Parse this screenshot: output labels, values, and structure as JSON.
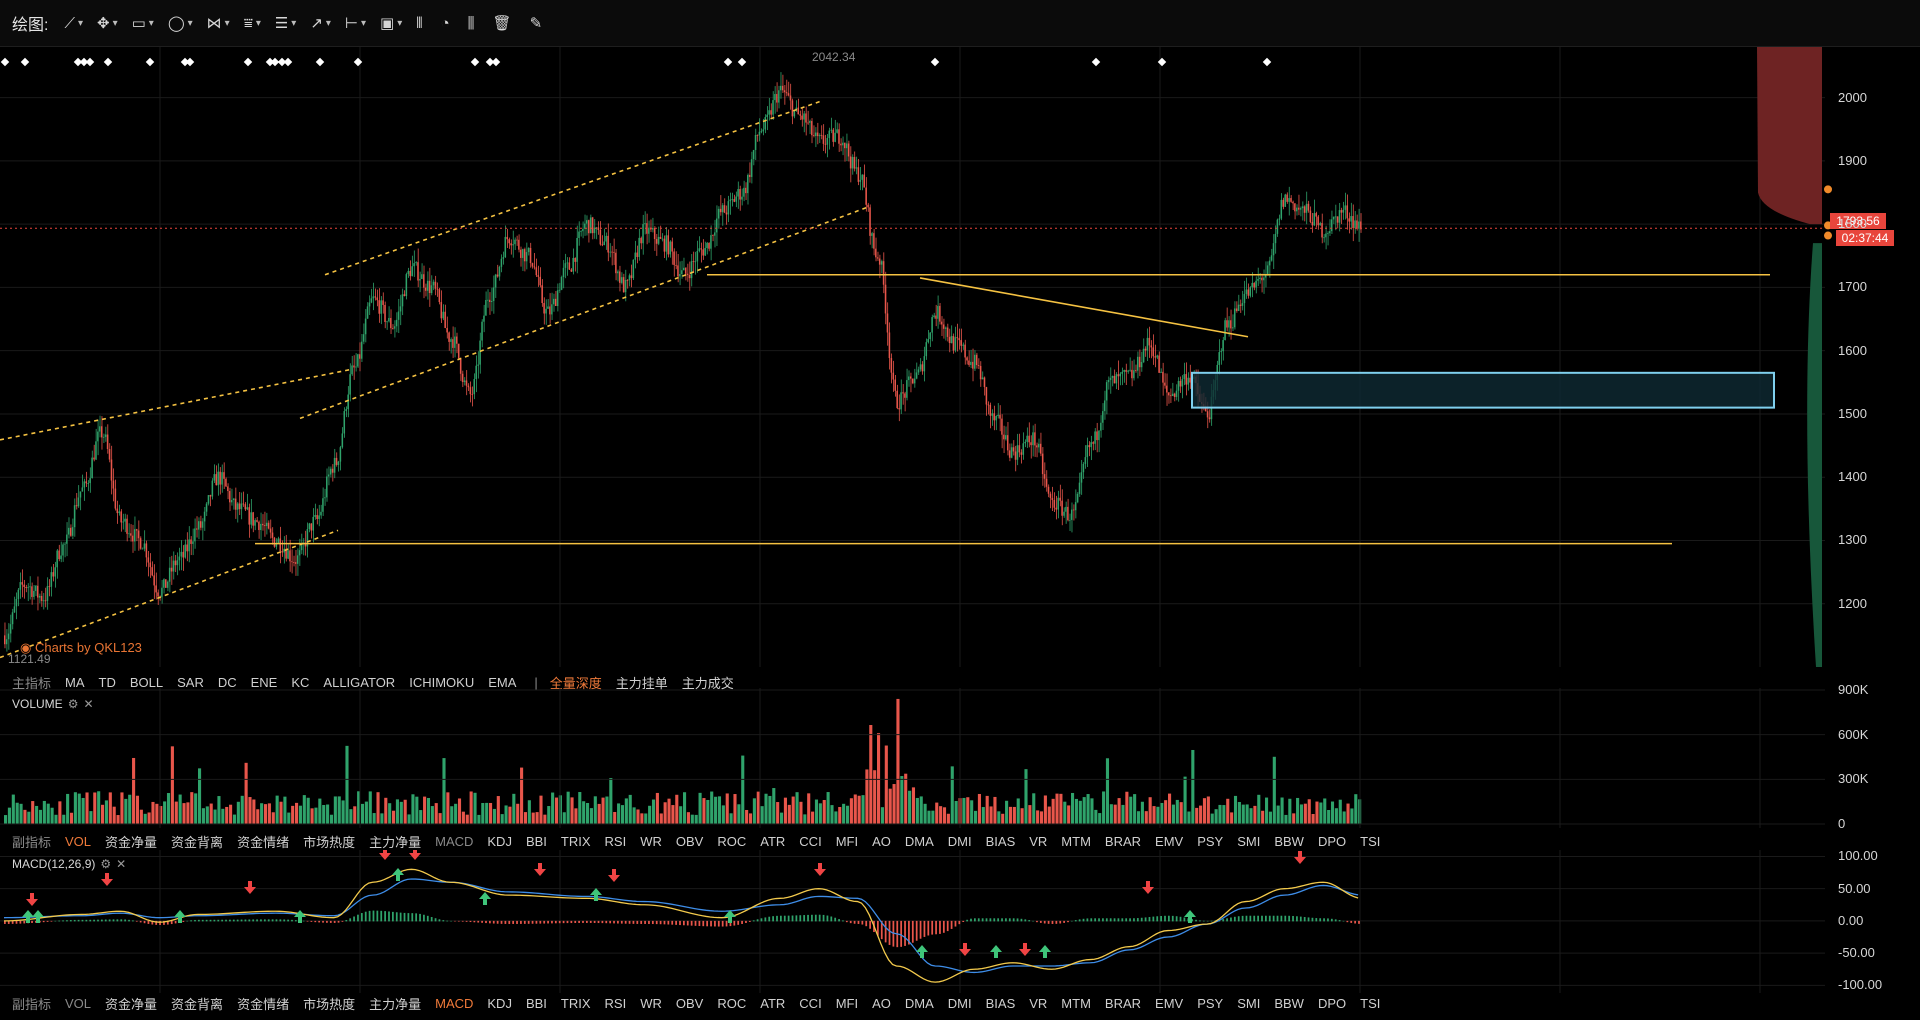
{
  "toolbar": {
    "label": "绘图:",
    "tools": [
      {
        "icon": "line-tool-icon",
        "glyph": "⟋",
        "has_menu": true
      },
      {
        "icon": "ray-tool-icon",
        "glyph": "✥",
        "has_menu": true
      },
      {
        "icon": "rectangle-tool-icon",
        "glyph": "▭",
        "has_menu": true
      },
      {
        "icon": "ellipse-tool-icon",
        "glyph": "◯",
        "has_menu": true
      },
      {
        "icon": "zigzag-tool-icon",
        "glyph": "⋈",
        "has_menu": true
      },
      {
        "icon": "pattern-tool-icon",
        "glyph": "⩸",
        "has_menu": true
      },
      {
        "icon": "fibonacci-tool-icon",
        "glyph": "☰",
        "has_menu": true
      },
      {
        "icon": "arrow-tool-icon",
        "glyph": "↗",
        "has_menu": true
      },
      {
        "icon": "measure-tool-icon",
        "glyph": "⊢",
        "has_menu": true
      },
      {
        "icon": "comment-tool-icon",
        "glyph": "▣",
        "has_menu": true
      },
      {
        "icon": "bars-pattern-icon",
        "glyph": "⫴",
        "has_menu": false
      },
      {
        "icon": "chart-settings-icon",
        "glyph": "◔",
        "has_menu": false
      },
      {
        "icon": "indicator-icon",
        "glyph": "⫼",
        "has_menu": false
      },
      {
        "icon": "trash-icon",
        "glyph": "🗑",
        "has_menu": false
      },
      {
        "icon": "pencil-icon",
        "glyph": "✎",
        "has_menu": false
      }
    ]
  },
  "main_tabs": {
    "first": "主指标",
    "items": [
      "MA",
      "TD",
      "BOLL",
      "SAR",
      "DC",
      "ENE",
      "KC",
      "ALLIGATOR",
      "ICHIMOKU",
      "EMA"
    ],
    "extra": [
      "全量深度",
      "主力挂单",
      "主力成交"
    ],
    "active": "全量深度"
  },
  "sub_tabs": {
    "first": "副指标",
    "items": [
      "VOL",
      "资金净量",
      "资金背离",
      "资金情绪",
      "市场热度",
      "主力净量",
      "MACD",
      "KDJ",
      "BBI",
      "TRIX",
      "RSI",
      "WR",
      "OBV",
      "ROC",
      "ATR",
      "CCI",
      "MFI",
      "AO",
      "DMA",
      "DMI",
      "BIAS",
      "VR",
      "MTM",
      "BRAR",
      "EMV",
      "PSY",
      "SMI",
      "BBW",
      "DPO",
      "TSI"
    ]
  },
  "sub_tabs_volume_active": "VOL",
  "sub_tabs_macd_active": "MACD",
  "volume_panel": {
    "title": "VOLUME"
  },
  "macd_panel": {
    "title": "MACD(12,26,9)"
  },
  "watermark": "Charts by QKL123",
  "price_tag": "1793.56",
  "time_tag": "02:37:44",
  "high_label": "2042.34",
  "low_label": "1121.49",
  "colors": {
    "up": "#2fa36b",
    "down": "#e8564b",
    "trend": "#f5c242",
    "zone": "#7fd0ee",
    "macd_dif": "#f2c94c",
    "macd_dea": "#3e8de8",
    "accent": "#e87433"
  },
  "chart_data": [
    {
      "type": "candlestick",
      "title": "",
      "ylim": [
        1100,
        2080
      ],
      "yticks": [
        "2000",
        "1900",
        "1800",
        "1700",
        "1600",
        "1500",
        "1400",
        "1300",
        "1200"
      ],
      "support_levels": [
        1720,
        1295
      ],
      "zone": [
        1510,
        1565
      ],
      "last_price": 1793.56,
      "ohlc_keypoints": [
        [
          0,
          1150
        ],
        [
          10,
          1230
        ],
        [
          20,
          1210
        ],
        [
          30,
          1290
        ],
        [
          40,
          1380
        ],
        [
          50,
          1470
        ],
        [
          60,
          1330
        ],
        [
          70,
          1300
        ],
        [
          80,
          1220
        ],
        [
          90,
          1270
        ],
        [
          100,
          1320
        ],
        [
          110,
          1400
        ],
        [
          120,
          1350
        ],
        [
          130,
          1330
        ],
        [
          140,
          1300
        ],
        [
          150,
          1270
        ],
        [
          160,
          1330
        ],
        [
          170,
          1420
        ],
        [
          180,
          1570
        ],
        [
          190,
          1680
        ],
        [
          200,
          1640
        ],
        [
          210,
          1730
        ],
        [
          220,
          1700
        ],
        [
          230,
          1620
        ],
        [
          240,
          1530
        ],
        [
          250,
          1690
        ],
        [
          260,
          1780
        ],
        [
          270,
          1750
        ],
        [
          280,
          1660
        ],
        [
          290,
          1730
        ],
        [
          300,
          1800
        ],
        [
          310,
          1770
        ],
        [
          320,
          1700
        ],
        [
          330,
          1790
        ],
        [
          340,
          1770
        ],
        [
          350,
          1720
        ],
        [
          360,
          1760
        ],
        [
          370,
          1820
        ],
        [
          380,
          1850
        ],
        [
          390,
          1950
        ],
        [
          400,
          2010
        ],
        [
          410,
          1970
        ],
        [
          420,
          1930
        ],
        [
          430,
          1940
        ],
        [
          440,
          1880
        ],
        [
          450,
          1750
        ],
        [
          460,
          1520
        ],
        [
          470,
          1560
        ],
        [
          480,
          1660
        ],
        [
          490,
          1610
        ],
        [
          500,
          1580
        ],
        [
          510,
          1490
        ],
        [
          520,
          1440
        ],
        [
          530,
          1460
        ],
        [
          540,
          1360
        ],
        [
          550,
          1340
        ],
        [
          560,
          1450
        ],
        [
          570,
          1550
        ],
        [
          580,
          1560
        ],
        [
          590,
          1610
        ],
        [
          600,
          1530
        ],
        [
          610,
          1560
        ],
        [
          620,
          1500
        ],
        [
          630,
          1640
        ],
        [
          640,
          1690
        ],
        [
          650,
          1720
        ],
        [
          660,
          1840
        ],
        [
          670,
          1820
        ],
        [
          680,
          1790
        ],
        [
          690,
          1820
        ],
        [
          700,
          1793
        ]
      ]
    },
    {
      "type": "bar",
      "title": "VOLUME",
      "ylim": [
        0,
        900000
      ],
      "yticks": [
        "900K",
        "600K",
        "300K",
        "0"
      ]
    },
    {
      "type": "line",
      "title": "MACD(12,26,9)",
      "ylim": [
        -115,
        110
      ],
      "yticks": [
        "100.00",
        "50.00",
        "0.00",
        "-50.00",
        "-100.00"
      ],
      "dif_keypoints": [
        [
          0,
          0
        ],
        [
          40,
          10
        ],
        [
          60,
          15
        ],
        [
          80,
          -2
        ],
        [
          100,
          10
        ],
        [
          140,
          15
        ],
        [
          170,
          5
        ],
        [
          190,
          60
        ],
        [
          210,
          80
        ],
        [
          230,
          60
        ],
        [
          260,
          40
        ],
        [
          300,
          35
        ],
        [
          330,
          25
        ],
        [
          370,
          5
        ],
        [
          400,
          35
        ],
        [
          420,
          50
        ],
        [
          440,
          30
        ],
        [
          460,
          -70
        ],
        [
          480,
          -95
        ],
        [
          500,
          -75
        ],
        [
          520,
          -65
        ],
        [
          540,
          -75
        ],
        [
          560,
          -60
        ],
        [
          580,
          -40
        ],
        [
          600,
          -15
        ],
        [
          620,
          -5
        ],
        [
          640,
          30
        ],
        [
          660,
          50
        ],
        [
          680,
          60
        ],
        [
          700,
          35
        ]
      ],
      "dea_keypoints": [
        [
          0,
          5
        ],
        [
          40,
          8
        ],
        [
          60,
          12
        ],
        [
          80,
          5
        ],
        [
          100,
          8
        ],
        [
          140,
          12
        ],
        [
          170,
          8
        ],
        [
          190,
          40
        ],
        [
          210,
          65
        ],
        [
          230,
          60
        ],
        [
          260,
          45
        ],
        [
          300,
          38
        ],
        [
          330,
          30
        ],
        [
          370,
          15
        ],
        [
          400,
          25
        ],
        [
          420,
          38
        ],
        [
          440,
          35
        ],
        [
          460,
          -20
        ],
        [
          480,
          -70
        ],
        [
          500,
          -80
        ],
        [
          520,
          -70
        ],
        [
          540,
          -70
        ],
        [
          560,
          -65
        ],
        [
          580,
          -45
        ],
        [
          600,
          -25
        ],
        [
          620,
          -5
        ],
        [
          640,
          20
        ],
        [
          660,
          40
        ],
        [
          680,
          55
        ],
        [
          700,
          40
        ]
      ]
    }
  ]
}
